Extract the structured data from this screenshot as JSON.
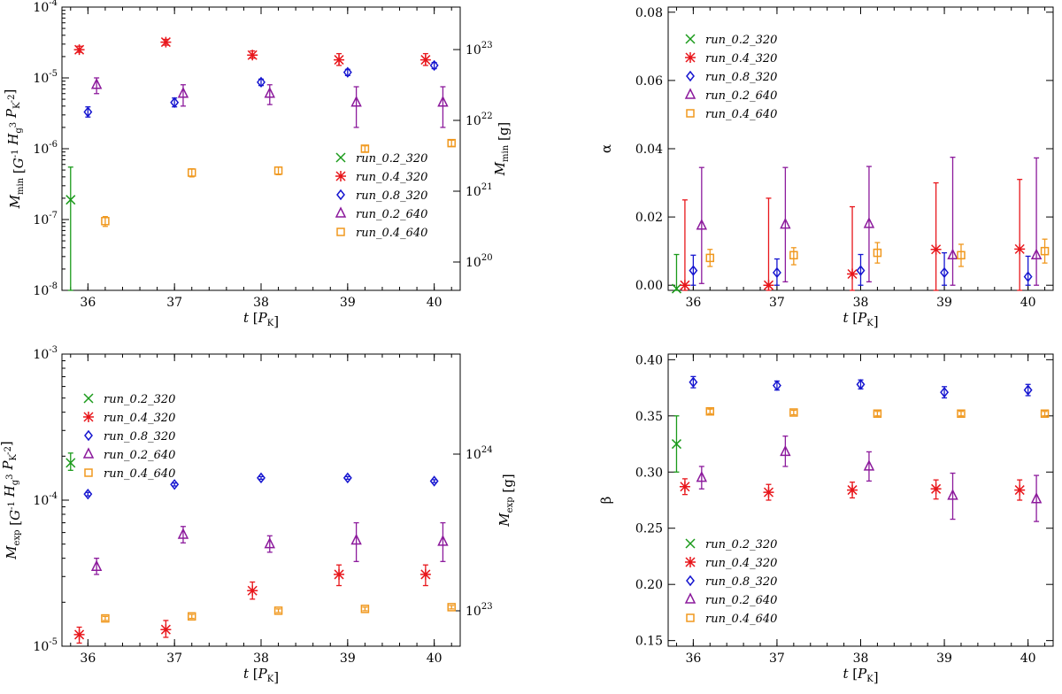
{
  "colors": {
    "run_0.2_320": "#1a9a1a",
    "run_0.4_320": "#e8161b",
    "run_0.8_320": "#1616d0",
    "run_0.2_640": "#8c1a9c",
    "run_0.4_640": "#f0981e"
  },
  "series_order": [
    "run_0.2_320",
    "run_0.4_320",
    "run_0.8_320",
    "run_0.2_640",
    "run_0.4_640"
  ],
  "markers": {
    "run_0.2_320": "x",
    "run_0.4_320": "asterisk",
    "run_0.8_320": "diamond",
    "run_0.2_640": "triangle",
    "run_0.4_640": "square"
  },
  "chart_data": [
    {
      "id": "mmin",
      "type": "scatter",
      "xlabel": "t [P_K]",
      "xlim": [
        35.7,
        40.3
      ],
      "xticks": [
        36,
        37,
        38,
        39,
        40
      ],
      "ylabel": "M_min [G^-1 H_g^3 P_K^-2]",
      "yscale": "log",
      "ylim": [
        1e-08,
        0.0001
      ],
      "ytick_labels": [
        "10^-8",
        "10^-7",
        "10^-6",
        "10^-5",
        "10^-4"
      ],
      "y2label": "M_min [g]",
      "y2_tick_labels": [
        "10^20",
        "10^21",
        "10^22",
        "10^23"
      ],
      "legend": "bottom-right",
      "series": [
        {
          "name": "run_0.2_320",
          "x": [
            35.8
          ],
          "y": [
            1.9e-07
          ],
          "lo": [
            1e-08
          ],
          "hi": [
            5.5e-07
          ]
        },
        {
          "name": "run_0.4_320",
          "x": [
            35.9,
            36.9,
            37.9,
            38.9,
            39.9
          ],
          "y": [
            2.5e-05,
            3.2e-05,
            2.1e-05,
            1.8e-05,
            1.8e-05
          ],
          "lo": [
            2.3e-05,
            2.9e-05,
            1.9e-05,
            1.5e-05,
            1.5e-05
          ],
          "hi": [
            2.8e-05,
            3.5e-05,
            2.4e-05,
            2.2e-05,
            2.2e-05
          ]
        },
        {
          "name": "run_0.8_320",
          "x": [
            36.0,
            37.0,
            38.0,
            39.0,
            40.0
          ],
          "y": [
            3.3e-06,
            4.5e-06,
            8.7e-06,
            1.2e-05,
            1.5e-05
          ],
          "lo": [
            2.8e-06,
            3.9e-06,
            7.8e-06,
            1.08e-05,
            1.35e-05
          ],
          "hi": [
            3.9e-06,
            5.2e-06,
            9.6e-06,
            1.32e-05,
            1.65e-05
          ]
        },
        {
          "name": "run_0.2_640",
          "x": [
            36.1,
            37.1,
            38.1,
            39.1,
            40.1
          ],
          "y": [
            8e-06,
            6e-06,
            6e-06,
            4.5e-06,
            4.5e-06
          ],
          "lo": [
            6e-06,
            4e-06,
            4.2e-06,
            2e-06,
            2e-06
          ],
          "hi": [
            1e-05,
            8e-06,
            8e-06,
            7.5e-06,
            7.5e-06
          ]
        },
        {
          "name": "run_0.4_640",
          "x": [
            36.2,
            37.2,
            38.2,
            39.2,
            40.2
          ],
          "y": [
            9.5e-08,
            4.6e-07,
            4.9e-07,
            1e-06,
            1.2e-06
          ],
          "lo": [
            8e-08,
            4e-07,
            4.3e-07,
            9e-07,
            1.08e-06
          ],
          "hi": [
            1.1e-07,
            5.2e-07,
            5.5e-07,
            1.1e-06,
            1.32e-06
          ]
        }
      ]
    },
    {
      "id": "alpha",
      "type": "scatter",
      "xlabel": "t [P_K]",
      "xlim": [
        35.7,
        40.3
      ],
      "xticks": [
        36,
        37,
        38,
        39,
        40
      ],
      "ylabel": "α",
      "ylim": [
        -0.0015,
        0.0815
      ],
      "yticks": [
        0.0,
        0.02,
        0.04,
        0.06,
        0.08
      ],
      "ytick_labels": [
        "0.00",
        "0.02",
        "0.04",
        "0.06",
        "0.08"
      ],
      "legend": "top-left",
      "series": [
        {
          "name": "run_0.2_320",
          "x": [
            35.8
          ],
          "y": [
            -0.001
          ],
          "lo": [
            -0.0015
          ],
          "hi": [
            0.009
          ]
        },
        {
          "name": "run_0.4_320",
          "x": [
            35.9,
            36.9,
            37.9,
            38.9,
            39.9
          ],
          "y": [
            0.0,
            0.0,
            0.0033,
            0.0105,
            0.0106
          ],
          "lo": [
            -0.0015,
            -0.0015,
            -0.0015,
            -0.0015,
            -0.0015
          ],
          "hi": [
            0.025,
            0.0255,
            0.023,
            0.03,
            0.031
          ]
        },
        {
          "name": "run_0.8_320",
          "x": [
            36.0,
            37.0,
            38.0,
            39.0,
            40.0
          ],
          "y": [
            0.0043,
            0.0037,
            0.0043,
            0.0037,
            0.0025
          ],
          "lo": [
            0.0,
            0.0,
            0.0,
            0.0,
            0.0
          ],
          "hi": [
            0.0088,
            0.0077,
            0.009,
            0.0095,
            0.0085
          ]
        },
        {
          "name": "run_0.2_640",
          "x": [
            36.1,
            37.1,
            38.1,
            39.1,
            40.1
          ],
          "y": [
            0.0175,
            0.0178,
            0.018,
            0.0088,
            0.0088
          ],
          "lo": [
            0.0005,
            0.001,
            0.001,
            0.0,
            0.0
          ],
          "hi": [
            0.0345,
            0.0345,
            0.0348,
            0.0375,
            0.0373
          ]
        },
        {
          "name": "run_0.4_640",
          "x": [
            36.2,
            37.2,
            38.2,
            39.2,
            40.2
          ],
          "y": [
            0.008,
            0.0088,
            0.0095,
            0.0088,
            0.01
          ],
          "lo": [
            0.0055,
            0.006,
            0.0065,
            0.0055,
            0.0065
          ],
          "hi": [
            0.0105,
            0.011,
            0.0125,
            0.012,
            0.0135
          ]
        }
      ]
    },
    {
      "id": "mexp",
      "type": "scatter",
      "xlabel": "t [P_K]",
      "xlim": [
        35.7,
        40.3
      ],
      "xticks": [
        36,
        37,
        38,
        39,
        40
      ],
      "ylabel": "M_exp [G^-1 H_g^3 P_K^-2]",
      "yscale": "log",
      "ylim": [
        1e-05,
        0.001
      ],
      "ytick_labels": [
        "10^-5",
        "10^-4",
        "10^-3"
      ],
      "y2label": "M_exp [g]",
      "y2_tick_labels": [
        "10^23",
        "10^24"
      ],
      "legend": "top-left",
      "series": [
        {
          "name": "run_0.2_320",
          "x": [
            35.8
          ],
          "y": [
            0.00018
          ],
          "lo": [
            0.00016
          ],
          "hi": [
            0.00021
          ]
        },
        {
          "name": "run_0.4_320",
          "x": [
            35.9,
            36.9,
            37.9,
            38.9,
            39.9
          ],
          "y": [
            1.2e-05,
            1.3e-05,
            2.4e-05,
            3.1e-05,
            3.1e-05
          ],
          "lo": [
            1.05e-05,
            1.15e-05,
            2.1e-05,
            2.6e-05,
            2.6e-05
          ],
          "hi": [
            1.35e-05,
            1.5e-05,
            2.75e-05,
            3.6e-05,
            3.6e-05
          ]
        },
        {
          "name": "run_0.8_320",
          "x": [
            36.0,
            37.0,
            38.0,
            39.0,
            40.0
          ],
          "y": [
            0.00011,
            0.000128,
            0.000142,
            0.000142,
            0.000135
          ],
          "lo": [
            0.000107,
            0.000125,
            0.000139,
            0.000139,
            0.000132
          ],
          "hi": [
            0.000113,
            0.000131,
            0.000145,
            0.000145,
            0.000138
          ]
        },
        {
          "name": "run_0.2_640",
          "x": [
            36.1,
            37.1,
            38.1,
            39.1,
            40.1
          ],
          "y": [
            3.5e-05,
            5.8e-05,
            5e-05,
            5.3e-05,
            5.2e-05
          ],
          "lo": [
            3.1e-05,
            5.1e-05,
            4.4e-05,
            3.8e-05,
            3.8e-05
          ],
          "hi": [
            4e-05,
            6.6e-05,
            5.7e-05,
            7e-05,
            7e-05
          ]
        },
        {
          "name": "run_0.4_640",
          "x": [
            36.2,
            37.2,
            38.2,
            39.2,
            40.2
          ],
          "y": [
            1.55e-05,
            1.6e-05,
            1.75e-05,
            1.8e-05,
            1.85e-05
          ],
          "lo": [
            1.5e-05,
            1.55e-05,
            1.7e-05,
            1.75e-05,
            1.8e-05
          ],
          "hi": [
            1.6e-05,
            1.65e-05,
            1.8e-05,
            1.85e-05,
            1.9e-05
          ]
        }
      ]
    },
    {
      "id": "beta",
      "type": "scatter",
      "xlabel": "t [P_K]",
      "xlim": [
        35.7,
        40.3
      ],
      "xticks": [
        36,
        37,
        38,
        39,
        40
      ],
      "ylabel": "β",
      "ylim": [
        0.145,
        0.405
      ],
      "yticks": [
        0.15,
        0.2,
        0.25,
        0.3,
        0.35,
        0.4
      ],
      "ytick_labels": [
        "0.15",
        "0.20",
        "0.25",
        "0.30",
        "0.35",
        "0.40"
      ],
      "legend": "bottom-left",
      "series": [
        {
          "name": "run_0.2_320",
          "x": [
            35.8
          ],
          "y": [
            0.325
          ],
          "lo": [
            0.3
          ],
          "hi": [
            0.35
          ]
        },
        {
          "name": "run_0.4_320",
          "x": [
            35.9,
            36.9,
            37.9,
            38.9,
            39.9
          ],
          "y": [
            0.287,
            0.282,
            0.284,
            0.285,
            0.284
          ],
          "lo": [
            0.28,
            0.275,
            0.277,
            0.276,
            0.275
          ],
          "hi": [
            0.294,
            0.289,
            0.291,
            0.293,
            0.293
          ]
        },
        {
          "name": "run_0.8_320",
          "x": [
            36.0,
            37.0,
            38.0,
            39.0,
            40.0
          ],
          "y": [
            0.38,
            0.377,
            0.378,
            0.371,
            0.373
          ],
          "lo": [
            0.375,
            0.373,
            0.374,
            0.366,
            0.368
          ],
          "hi": [
            0.385,
            0.381,
            0.382,
            0.376,
            0.378
          ]
        },
        {
          "name": "run_0.2_640",
          "x": [
            36.1,
            37.1,
            38.1,
            39.1,
            40.1
          ],
          "y": [
            0.295,
            0.318,
            0.305,
            0.279,
            0.276
          ],
          "lo": [
            0.285,
            0.305,
            0.292,
            0.258,
            0.256
          ],
          "hi": [
            0.305,
            0.332,
            0.318,
            0.299,
            0.297
          ]
        },
        {
          "name": "run_0.4_640",
          "x": [
            36.2,
            37.2,
            38.2,
            39.2,
            40.2
          ],
          "y": [
            0.354,
            0.353,
            0.352,
            0.352,
            0.352
          ],
          "lo": [
            0.352,
            0.351,
            0.35,
            0.35,
            0.35
          ],
          "hi": [
            0.356,
            0.355,
            0.354,
            0.354,
            0.354
          ]
        }
      ]
    }
  ]
}
